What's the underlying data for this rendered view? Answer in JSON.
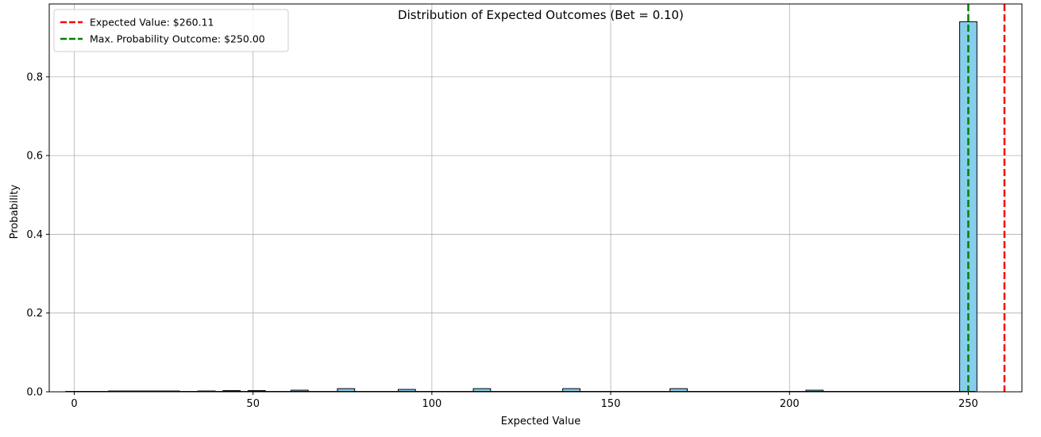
{
  "chart_data": {
    "type": "bar",
    "title": "Distribution of Expected Outcomes (Bet = 0.10)",
    "xlabel": "Expected Value",
    "ylabel": "Probability",
    "xlim": [
      -7,
      265
    ],
    "ylim": [
      0,
      0.985
    ],
    "xticks": [
      0,
      50,
      100,
      150,
      200,
      250
    ],
    "yticks": [
      0.0,
      0.2,
      0.4,
      0.6,
      0.8
    ],
    "ytick_labels": [
      "0.0",
      "0.2",
      "0.4",
      "0.6",
      "0.8"
    ],
    "grid": true,
    "bar_color": "#87CEEB",
    "bar_edge_color": "#000000",
    "bin_width": 4.83,
    "bars": [
      {
        "x": 0,
        "value": 0.001
      },
      {
        "x": 12,
        "value": 0.002
      },
      {
        "x": 17,
        "value": 0.002
      },
      {
        "x": 22,
        "value": 0.002
      },
      {
        "x": 27,
        "value": 0.002
      },
      {
        "x": 37,
        "value": 0.002
      },
      {
        "x": 44,
        "value": 0.003
      },
      {
        "x": 51,
        "value": 0.003
      },
      {
        "x": 63,
        "value": 0.004
      },
      {
        "x": 76,
        "value": 0.008
      },
      {
        "x": 93,
        "value": 0.006
      },
      {
        "x": 114,
        "value": 0.008
      },
      {
        "x": 139,
        "value": 0.008
      },
      {
        "x": 169,
        "value": 0.008
      },
      {
        "x": 207,
        "value": 0.004
      },
      {
        "x": 250,
        "value": 0.94
      }
    ],
    "lines": [
      {
        "x": 260.11,
        "color": "#FF0000",
        "style": "dashed",
        "label": "Expected Value: $260.11"
      },
      {
        "x": 250.0,
        "color": "#008000",
        "style": "dashed",
        "label": "Max. Probability Outcome: $250.00"
      }
    ],
    "legend_position": "upper-left"
  }
}
